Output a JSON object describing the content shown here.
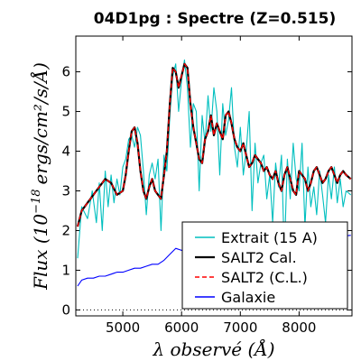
{
  "chart_data": {
    "type": "line",
    "title": "04D1pg : Spectre (Z=0.515)",
    "xlabel": "λ observé (Å)",
    "ylabel": "Flux (10^-18 ergs/cm²/s/Å)",
    "ylabel_parts": {
      "prefix": "Flux (10",
      "exponent": "−18",
      "suffix": "ergs/cm²/s/Å)"
    },
    "xlim": [
      4200,
      8900
    ],
    "ylim": [
      -0.15,
      6.9
    ],
    "xticks": [
      5000,
      6000,
      7000,
      8000
    ],
    "xtick_labels": [
      "5000",
      "6000",
      "7000",
      "8000"
    ],
    "yticks": [
      0,
      1,
      2,
      3,
      4,
      5,
      6
    ],
    "ytick_labels": [
      "0",
      "1",
      "2",
      "3",
      "4",
      "5",
      "6"
    ],
    "grid": false,
    "legend_position": "lower-right",
    "reference_line": {
      "y": 0,
      "style": "dotted",
      "color": "#000000"
    },
    "series": [
      {
        "name": "Extrait (15 A)",
        "color": "#00bfbf",
        "style": "solid",
        "x": [
          4230,
          4300,
          4400,
          4480,
          4550,
          4600,
          4650,
          4700,
          4750,
          4800,
          4850,
          4900,
          4950,
          5000,
          5050,
          5100,
          5150,
          5200,
          5250,
          5300,
          5350,
          5400,
          5450,
          5500,
          5550,
          5600,
          5650,
          5700,
          5750,
          5800,
          5850,
          5900,
          5950,
          6000,
          6050,
          6100,
          6150,
          6200,
          6250,
          6300,
          6350,
          6400,
          6450,
          6500,
          6550,
          6600,
          6650,
          6700,
          6750,
          6800,
          6850,
          6900,
          6950,
          7000,
          7050,
          7100,
          7150,
          7200,
          7250,
          7300,
          7350,
          7400,
          7450,
          7500,
          7550,
          7600,
          7650,
          7700,
          7750,
          7800,
          7850,
          7900,
          7950,
          8000,
          8050,
          8100,
          8150,
          8200,
          8250,
          8300,
          8350,
          8400,
          8450,
          8500,
          8550,
          8600,
          8650,
          8700,
          8750,
          8800,
          8880
        ],
        "y": [
          1.3,
          2.6,
          2.3,
          3.0,
          2.2,
          3.2,
          2.0,
          3.5,
          2.6,
          3.4,
          2.7,
          3.3,
          2.9,
          3.6,
          3.8,
          4.3,
          4.4,
          4.1,
          4.6,
          4.4,
          3.5,
          2.4,
          3.4,
          3.7,
          3.3,
          3.8,
          2.0,
          3.9,
          3.5,
          4.9,
          5.9,
          6.2,
          5.0,
          5.8,
          6.3,
          5.6,
          4.1,
          5.2,
          5.0,
          3.0,
          4.9,
          4.2,
          5.4,
          4.5,
          5.6,
          5.0,
          3.4,
          5.2,
          4.4,
          4.8,
          5.6,
          4.1,
          3.6,
          4.6,
          3.4,
          4.0,
          5.0,
          2.5,
          4.2,
          3.2,
          3.7,
          3.9,
          2.8,
          3.4,
          2.2,
          3.7,
          3.1,
          3.9,
          1.4,
          3.8,
          2.8,
          4.2,
          3.3,
          3.0,
          4.2,
          2.1,
          3.6,
          2.6,
          3.1,
          2.4,
          3.5,
          2.9,
          2.2,
          3.4,
          2.8,
          3.6,
          2.7,
          3.3,
          2.6,
          3.0,
          2.9
        ]
      },
      {
        "name": "SALT2 Cal.",
        "color": "#000000",
        "style": "solid",
        "x": [
          4230,
          4300,
          4400,
          4500,
          4600,
          4700,
          4800,
          4900,
          5000,
          5050,
          5100,
          5150,
          5200,
          5250,
          5300,
          5350,
          5400,
          5450,
          5500,
          5550,
          5600,
          5650,
          5700,
          5750,
          5800,
          5850,
          5900,
          5950,
          6000,
          6050,
          6100,
          6150,
          6200,
          6250,
          6300,
          6350,
          6400,
          6450,
          6500,
          6550,
          6600,
          6650,
          6700,
          6750,
          6800,
          6850,
          6900,
          6950,
          7000,
          7050,
          7100,
          7150,
          7200,
          7250,
          7300,
          7350,
          7400,
          7450,
          7500,
          7550,
          7600,
          7650,
          7700,
          7750,
          7800,
          7850,
          7900,
          7950,
          8000,
          8050,
          8100,
          8150,
          8200,
          8250,
          8300,
          8350,
          8400,
          8450,
          8500,
          8550,
          8600,
          8650,
          8700,
          8750,
          8800,
          8880
        ],
        "y": [
          2.1,
          2.5,
          2.7,
          2.9,
          3.1,
          3.3,
          3.2,
          2.9,
          3.0,
          3.4,
          4.0,
          4.5,
          4.6,
          4.2,
          3.5,
          3.0,
          2.8,
          3.1,
          3.3,
          3.0,
          2.9,
          2.8,
          3.4,
          4.0,
          5.2,
          6.1,
          6.0,
          5.6,
          5.9,
          6.2,
          6.1,
          5.2,
          4.6,
          4.2,
          3.8,
          3.7,
          4.3,
          4.5,
          4.9,
          4.4,
          4.7,
          4.5,
          4.3,
          4.9,
          5.0,
          4.7,
          4.3,
          4.1,
          4.0,
          4.2,
          3.9,
          3.6,
          3.7,
          3.9,
          3.8,
          3.7,
          3.5,
          3.6,
          3.4,
          3.3,
          3.5,
          3.2,
          3.0,
          3.4,
          3.6,
          3.3,
          3.0,
          2.9,
          3.5,
          3.4,
          3.3,
          3.0,
          3.2,
          3.5,
          3.6,
          3.4,
          3.2,
          3.3,
          3.5,
          3.6,
          3.4,
          3.2,
          3.4,
          3.5,
          3.4,
          3.3
        ]
      },
      {
        "name": "SALT2 (C.L.)",
        "color": "#ff0000",
        "style": "dashed",
        "x": [
          4230,
          4300,
          4400,
          4500,
          4600,
          4700,
          4800,
          4900,
          5000,
          5050,
          5100,
          5150,
          5200,
          5250,
          5300,
          5350,
          5400,
          5450,
          5500,
          5550,
          5600,
          5650,
          5700,
          5750,
          5800,
          5850,
          5900,
          5950,
          6000,
          6050,
          6100,
          6150,
          6200,
          6250,
          6300,
          6350,
          6400,
          6450,
          6500,
          6550,
          6600,
          6650,
          6700,
          6750,
          6800,
          6850,
          6900,
          6950,
          7000,
          7050,
          7100,
          7150,
          7200,
          7250,
          7300,
          7350,
          7400,
          7450,
          7500,
          7550,
          7600,
          7650,
          7700,
          7750,
          7800,
          7850,
          7900,
          7950,
          8000,
          8050,
          8100,
          8150,
          8200,
          8250,
          8300,
          8350,
          8400,
          8450,
          8500,
          8550,
          8600,
          8650,
          8700,
          8750,
          8800,
          8880
        ],
        "y": [
          2.1,
          2.5,
          2.7,
          2.9,
          3.1,
          3.3,
          3.2,
          2.9,
          3.0,
          3.4,
          4.0,
          4.5,
          4.6,
          4.2,
          3.5,
          3.0,
          2.8,
          3.1,
          3.3,
          3.0,
          2.9,
          2.8,
          3.4,
          4.0,
          5.2,
          6.1,
          6.0,
          5.6,
          5.9,
          6.2,
          6.1,
          5.2,
          4.6,
          4.2,
          3.8,
          3.7,
          4.3,
          4.5,
          4.9,
          4.4,
          4.7,
          4.5,
          4.3,
          4.9,
          5.0,
          4.7,
          4.3,
          4.1,
          4.0,
          4.2,
          3.9,
          3.6,
          3.7,
          3.9,
          3.8,
          3.7,
          3.5,
          3.6,
          3.4,
          3.3,
          3.5,
          3.2,
          3.0,
          3.4,
          3.6,
          3.3,
          3.0,
          2.9,
          3.5,
          3.4,
          3.3,
          3.0,
          3.2,
          3.5,
          3.6,
          3.4,
          3.2,
          3.3,
          3.5,
          3.6,
          3.4,
          3.2,
          3.4,
          3.5,
          3.4,
          3.3
        ]
      },
      {
        "name": "Galaxie",
        "color": "#0000ff",
        "style": "solid",
        "x": [
          4230,
          4300,
          4400,
          4500,
          4600,
          4700,
          4800,
          4900,
          5000,
          5100,
          5200,
          5300,
          5400,
          5500,
          5600,
          5700,
          5800,
          5900,
          6000,
          6100,
          6200,
          6300,
          6400,
          6500,
          6600,
          6700,
          6800,
          6900,
          7000,
          7100,
          7200,
          7300,
          7400,
          7500,
          7600,
          7700,
          7800,
          7900,
          8000,
          8100,
          8200,
          8300,
          8400,
          8500,
          8600,
          8700,
          8880
        ],
        "y": [
          0.6,
          0.75,
          0.8,
          0.8,
          0.85,
          0.85,
          0.9,
          0.95,
          0.95,
          1.0,
          1.05,
          1.05,
          1.1,
          1.15,
          1.15,
          1.25,
          1.4,
          1.55,
          1.5,
          1.55,
          1.6,
          1.6,
          1.62,
          1.65,
          1.65,
          1.65,
          1.7,
          1.68,
          1.7,
          1.7,
          1.72,
          1.72,
          1.75,
          1.75,
          1.75,
          1.78,
          1.78,
          1.8,
          1.8,
          1.8,
          1.8,
          1.82,
          1.82,
          1.82,
          1.85,
          1.85,
          1.88
        ]
      }
    ]
  }
}
